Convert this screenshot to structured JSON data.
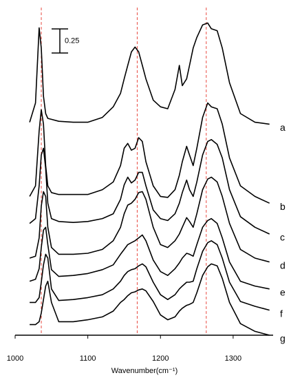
{
  "chart_data": {
    "type": "line",
    "xlabel": "Wavenumber(cm⁻¹)",
    "xlim": [
      1000,
      1355
    ],
    "ylim": [
      0,
      3.4
    ],
    "xticks": [
      1000,
      1100,
      1200,
      1300
    ],
    "scale_bar": 0.25,
    "reference_lines": {
      "color": "#e8493f",
      "x": [
        1036,
        1168,
        1263
      ]
    },
    "x": [
      1020,
      1028,
      1033,
      1036,
      1039,
      1042,
      1045,
      1050,
      1060,
      1080,
      1100,
      1120,
      1135,
      1145,
      1150,
      1155,
      1160,
      1165,
      1170,
      1175,
      1180,
      1190,
      1200,
      1210,
      1220,
      1226,
      1230,
      1236,
      1240,
      1245,
      1250,
      1258,
      1265,
      1270,
      1278,
      1285,
      1295,
      1310,
      1330,
      1350
    ],
    "series": [
      {
        "name": "a",
        "color": "#000000",
        "values": [
          2.21,
          2.41,
          3.19,
          2.98,
          2.48,
          2.3,
          2.25,
          2.24,
          2.22,
          2.21,
          2.21,
          2.26,
          2.37,
          2.51,
          2.66,
          2.8,
          2.94,
          2.99,
          2.94,
          2.8,
          2.66,
          2.44,
          2.37,
          2.35,
          2.55,
          2.8,
          2.59,
          2.66,
          2.8,
          2.98,
          3.09,
          3.22,
          3.24,
          3.18,
          3.16,
          2.98,
          2.62,
          2.3,
          2.21,
          2.19
        ]
      },
      {
        "name": "b",
        "color": "#000000",
        "values": [
          1.44,
          1.55,
          2.12,
          2.34,
          2.19,
          1.76,
          1.55,
          1.48,
          1.46,
          1.46,
          1.46,
          1.51,
          1.59,
          1.76,
          1.94,
          1.99,
          1.92,
          1.94,
          2.05,
          2.01,
          1.8,
          1.55,
          1.44,
          1.43,
          1.51,
          1.66,
          1.8,
          1.96,
          1.87,
          1.76,
          1.94,
          2.26,
          2.41,
          2.37,
          2.35,
          2.19,
          1.84,
          1.55,
          1.44,
          1.37
        ]
      },
      {
        "name": "c",
        "color": "#000000",
        "values": [
          1.16,
          1.21,
          1.55,
          1.87,
          1.94,
          1.73,
          1.37,
          1.21,
          1.18,
          1.17,
          1.18,
          1.21,
          1.26,
          1.41,
          1.56,
          1.64,
          1.58,
          1.61,
          1.69,
          1.69,
          1.55,
          1.3,
          1.21,
          1.19,
          1.26,
          1.37,
          1.48,
          1.61,
          1.51,
          1.44,
          1.59,
          1.87,
          2.01,
          2.03,
          1.98,
          1.84,
          1.51,
          1.23,
          1.12,
          1.05
        ]
      },
      {
        "name": "d",
        "color": "#000000",
        "values": [
          0.8,
          0.82,
          1.01,
          1.34,
          1.49,
          1.44,
          1.12,
          0.91,
          0.84,
          0.84,
          0.85,
          0.89,
          0.98,
          1.12,
          1.26,
          1.35,
          1.37,
          1.41,
          1.48,
          1.49,
          1.41,
          1.12,
          0.94,
          0.91,
          0.98,
          1.05,
          1.12,
          1.22,
          1.18,
          1.12,
          1.26,
          1.51,
          1.62,
          1.64,
          1.59,
          1.44,
          1.16,
          0.89,
          0.8,
          0.76
        ]
      },
      {
        "name": "e",
        "color": "#000000",
        "values": [
          0.56,
          0.58,
          0.69,
          0.91,
          1.09,
          1.12,
          0.94,
          0.68,
          0.61,
          0.62,
          0.64,
          0.68,
          0.73,
          0.84,
          0.89,
          0.94,
          0.96,
          0.98,
          1.01,
          1.04,
          0.98,
          0.78,
          0.66,
          0.62,
          0.69,
          0.75,
          0.8,
          0.85,
          0.84,
          0.82,
          0.94,
          1.12,
          1.19,
          1.21,
          1.16,
          1.01,
          0.76,
          0.56,
          0.51,
          0.48
        ]
      },
      {
        "name": "f",
        "color": "#000000",
        "values": [
          0.34,
          0.34,
          0.39,
          0.55,
          0.73,
          0.84,
          0.8,
          0.48,
          0.36,
          0.37,
          0.39,
          0.42,
          0.48,
          0.56,
          0.62,
          0.66,
          0.68,
          0.69,
          0.72,
          0.74,
          0.71,
          0.55,
          0.42,
          0.37,
          0.42,
          0.48,
          0.51,
          0.55,
          0.55,
          0.56,
          0.69,
          0.87,
          0.96,
          0.98,
          0.94,
          0.8,
          0.55,
          0.35,
          0.3,
          0.26
        ]
      },
      {
        "name": "g",
        "color": "#000000",
        "values": [
          0.11,
          0.11,
          0.14,
          0.23,
          0.37,
          0.51,
          0.56,
          0.34,
          0.14,
          0.14,
          0.16,
          0.19,
          0.25,
          0.34,
          0.37,
          0.41,
          0.44,
          0.45,
          0.47,
          0.48,
          0.46,
          0.35,
          0.21,
          0.16,
          0.19,
          0.25,
          0.28,
          0.31,
          0.32,
          0.34,
          0.44,
          0.62,
          0.71,
          0.74,
          0.72,
          0.59,
          0.34,
          0.12,
          0.04,
          0.0
        ]
      }
    ]
  }
}
